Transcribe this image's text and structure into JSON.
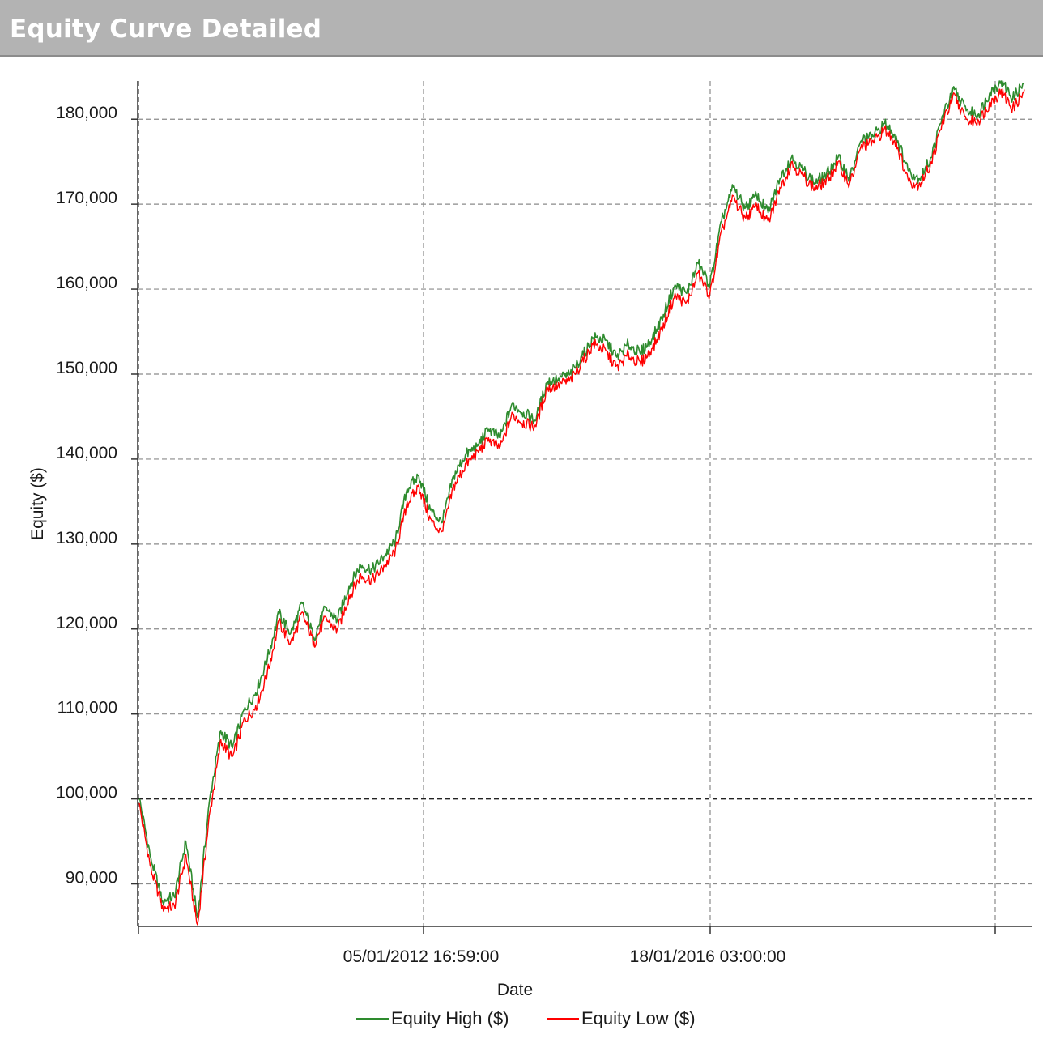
{
  "window": {
    "title": "Equity Curve Detailed"
  },
  "chart_data": {
    "type": "line",
    "title": "",
    "xlabel": "Date",
    "ylabel": "Equity ($)",
    "ylim": [
      85000,
      184500
    ],
    "yticks": [
      90000,
      100000,
      110000,
      120000,
      130000,
      140000,
      150000,
      160000,
      170000,
      180000
    ],
    "ytick_labels": [
      "90,000",
      "100,000",
      "110,000",
      "120,000",
      "130,000",
      "140,000",
      "150,000",
      "160,000",
      "170,000",
      "180,000"
    ],
    "baseline": 100000,
    "xticks": [
      {
        "label": ""
      },
      {
        "label": "05/01/2012 16:59:00"
      },
      {
        "label": "18/01/2016 03:00:00"
      },
      {
        "label": ""
      }
    ],
    "grid": true,
    "legend_position": "bottom",
    "colors": {
      "high": "#2e8b2e",
      "low": "#ff0000"
    },
    "series": [
      {
        "name": "Equity High ($)",
        "color": "#2e8b2e",
        "values": [
          100000,
          93000,
          88000,
          88500,
          95000,
          86000,
          99500,
          108000,
          106000,
          110500,
          112500,
          116500,
          121800,
          119500,
          123000,
          119000,
          122500,
          121000,
          125000,
          127500,
          127000,
          128500,
          130500,
          136500,
          138000,
          134000,
          132500,
          138000,
          140500,
          141500,
          143500,
          142500,
          146500,
          145500,
          144500,
          149000,
          149500,
          150000,
          152000,
          154300,
          154000,
          152000,
          153500,
          152500,
          154000,
          157000,
          160500,
          159500,
          163000,
          160500,
          168000,
          172000,
          169500,
          171000,
          169000,
          173000,
          175500,
          174000,
          172500,
          173500,
          175500,
          173000,
          177500,
          178000,
          179500,
          178000,
          174000,
          173000,
          175500,
          180500,
          183500,
          181000,
          180500,
          183000,
          184500,
          182500,
          184300
        ]
      },
      {
        "name": "Equity Low ($)",
        "color": "#ff0000",
        "values": [
          99500,
          92000,
          87500,
          87500,
          93500,
          85200,
          98000,
          107000,
          105000,
          109500,
          111000,
          115000,
          121000,
          118500,
          122000,
          118500,
          121500,
          120000,
          124000,
          126500,
          126000,
          127500,
          129500,
          135000,
          137000,
          133000,
          131500,
          137000,
          139500,
          141000,
          142500,
          141500,
          145500,
          144500,
          144000,
          148500,
          149000,
          149500,
          151500,
          153800,
          153000,
          151000,
          152500,
          151500,
          153000,
          156000,
          159500,
          158500,
          162000,
          159500,
          167000,
          171000,
          168500,
          170000,
          168000,
          172000,
          175000,
          173500,
          172000,
          173000,
          175000,
          172500,
          177000,
          177500,
          179000,
          177500,
          173000,
          172500,
          175000,
          180000,
          183000,
          180000,
          180000,
          182000,
          183500,
          181500,
          183500
        ]
      }
    ]
  }
}
